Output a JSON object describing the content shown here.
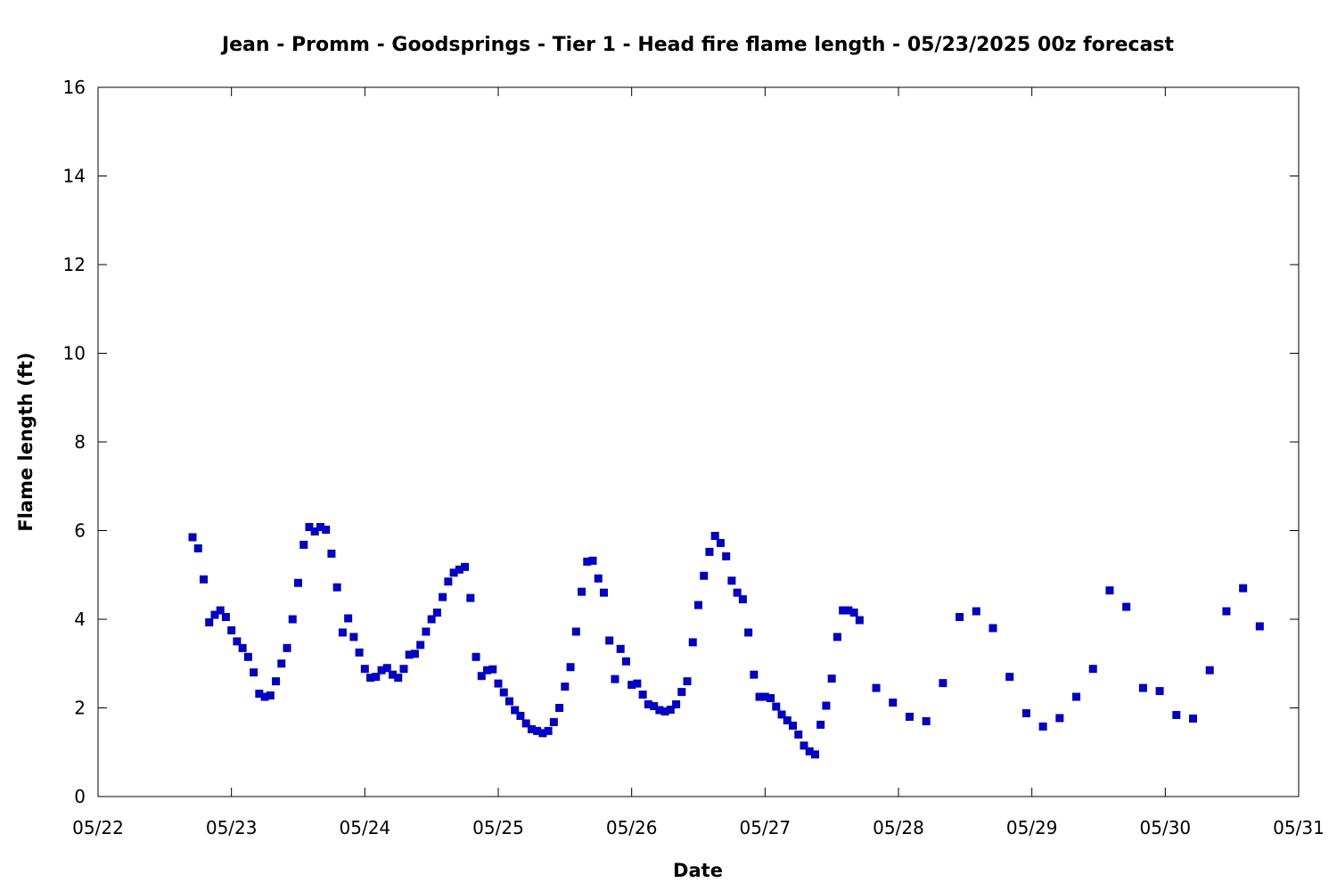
{
  "chart_data": {
    "type": "scatter",
    "title": "Jean - Promm - Goodsprings - Tier 1 - Head fire flame length - 05/23/2025 00z forecast",
    "xlabel": "Date",
    "ylabel": "Flame length (ft)",
    "ylim": [
      0,
      16
    ],
    "yticks": [
      0,
      2,
      4,
      6,
      8,
      10,
      12,
      14,
      16
    ],
    "xlim": [
      "2025-05-22 00:00",
      "2025-05-31 00:00"
    ],
    "xticks": [
      {
        "date": "2025-05-22",
        "label": "05/22"
      },
      {
        "date": "2025-05-23",
        "label": "05/23"
      },
      {
        "date": "2025-05-24",
        "label": "05/24"
      },
      {
        "date": "2025-05-25",
        "label": "05/25"
      },
      {
        "date": "2025-05-26",
        "label": "05/26"
      },
      {
        "date": "2025-05-27",
        "label": "05/27"
      },
      {
        "date": "2025-05-28",
        "label": "05/28"
      },
      {
        "date": "2025-05-29",
        "label": "05/29"
      },
      {
        "date": "2025-05-30",
        "label": "05/30"
      },
      {
        "date": "2025-05-31",
        "label": "05/31"
      }
    ],
    "grid": false,
    "marker_color": "#0000cc",
    "x": [
      "2025-05-22 17:00",
      "2025-05-22 18:00",
      "2025-05-22 19:00",
      "2025-05-22 20:00",
      "2025-05-22 21:00",
      "2025-05-22 22:00",
      "2025-05-22 23:00",
      "2025-05-23 00:00",
      "2025-05-23 01:00",
      "2025-05-23 02:00",
      "2025-05-23 03:00",
      "2025-05-23 04:00",
      "2025-05-23 05:00",
      "2025-05-23 06:00",
      "2025-05-23 07:00",
      "2025-05-23 08:00",
      "2025-05-23 09:00",
      "2025-05-23 10:00",
      "2025-05-23 11:00",
      "2025-05-23 12:00",
      "2025-05-23 13:00",
      "2025-05-23 14:00",
      "2025-05-23 15:00",
      "2025-05-23 16:00",
      "2025-05-23 17:00",
      "2025-05-23 18:00",
      "2025-05-23 19:00",
      "2025-05-23 20:00",
      "2025-05-23 21:00",
      "2025-05-23 22:00",
      "2025-05-23 23:00",
      "2025-05-24 00:00",
      "2025-05-24 01:00",
      "2025-05-24 02:00",
      "2025-05-24 03:00",
      "2025-05-24 04:00",
      "2025-05-24 05:00",
      "2025-05-24 06:00",
      "2025-05-24 07:00",
      "2025-05-24 08:00",
      "2025-05-24 09:00",
      "2025-05-24 10:00",
      "2025-05-24 11:00",
      "2025-05-24 12:00",
      "2025-05-24 13:00",
      "2025-05-24 14:00",
      "2025-05-24 15:00",
      "2025-05-24 16:00",
      "2025-05-24 17:00",
      "2025-05-24 18:00",
      "2025-05-24 19:00",
      "2025-05-24 20:00",
      "2025-05-24 21:00",
      "2025-05-24 22:00",
      "2025-05-24 23:00",
      "2025-05-25 00:00",
      "2025-05-25 01:00",
      "2025-05-25 02:00",
      "2025-05-25 03:00",
      "2025-05-25 04:00",
      "2025-05-25 05:00",
      "2025-05-25 06:00",
      "2025-05-25 07:00",
      "2025-05-25 08:00",
      "2025-05-25 09:00",
      "2025-05-25 10:00",
      "2025-05-25 11:00",
      "2025-05-25 12:00",
      "2025-05-25 13:00",
      "2025-05-25 14:00",
      "2025-05-25 15:00",
      "2025-05-25 16:00",
      "2025-05-25 17:00",
      "2025-05-25 18:00",
      "2025-05-25 19:00",
      "2025-05-25 20:00",
      "2025-05-25 21:00",
      "2025-05-25 22:00",
      "2025-05-25 23:00",
      "2025-05-26 00:00",
      "2025-05-26 01:00",
      "2025-05-26 02:00",
      "2025-05-26 03:00",
      "2025-05-26 04:00",
      "2025-05-26 05:00",
      "2025-05-26 06:00",
      "2025-05-26 07:00",
      "2025-05-26 08:00",
      "2025-05-26 09:00",
      "2025-05-26 10:00",
      "2025-05-26 11:00",
      "2025-05-26 12:00",
      "2025-05-26 13:00",
      "2025-05-26 14:00",
      "2025-05-26 15:00",
      "2025-05-26 16:00",
      "2025-05-26 17:00",
      "2025-05-26 18:00",
      "2025-05-26 19:00",
      "2025-05-26 20:00",
      "2025-05-26 21:00",
      "2025-05-26 22:00",
      "2025-05-26 23:00",
      "2025-05-27 00:00",
      "2025-05-27 01:00",
      "2025-05-27 02:00",
      "2025-05-27 03:00",
      "2025-05-27 04:00",
      "2025-05-27 05:00",
      "2025-05-27 06:00",
      "2025-05-27 07:00",
      "2025-05-27 08:00",
      "2025-05-27 09:00",
      "2025-05-27 10:00",
      "2025-05-27 11:00",
      "2025-05-27 12:00",
      "2025-05-27 13:00",
      "2025-05-27 14:00",
      "2025-05-27 15:00",
      "2025-05-27 16:00",
      "2025-05-27 17:00",
      "2025-05-27 20:00",
      "2025-05-27 23:00",
      "2025-05-28 02:00",
      "2025-05-28 05:00",
      "2025-05-28 08:00",
      "2025-05-28 11:00",
      "2025-05-28 14:00",
      "2025-05-28 17:00",
      "2025-05-28 20:00",
      "2025-05-28 23:00",
      "2025-05-29 02:00",
      "2025-05-29 05:00",
      "2025-05-29 08:00",
      "2025-05-29 11:00",
      "2025-05-29 14:00",
      "2025-05-29 17:00",
      "2025-05-29 20:00",
      "2025-05-29 23:00",
      "2025-05-30 02:00",
      "2025-05-30 05:00",
      "2025-05-30 08:00",
      "2025-05-30 11:00",
      "2025-05-30 14:00",
      "2025-05-30 17:00"
    ],
    "values": [
      5.85,
      5.6,
      4.9,
      3.93,
      4.1,
      4.2,
      4.05,
      3.75,
      3.5,
      3.35,
      3.15,
      2.8,
      2.32,
      2.25,
      2.28,
      2.6,
      3.0,
      3.35,
      4.0,
      4.82,
      5.68,
      6.08,
      5.98,
      6.08,
      6.02,
      5.48,
      4.72,
      3.7,
      4.02,
      3.6,
      3.25,
      2.88,
      2.68,
      2.7,
      2.85,
      2.9,
      2.75,
      2.68,
      2.88,
      3.2,
      3.22,
      3.42,
      3.72,
      4.0,
      4.15,
      4.5,
      4.85,
      5.05,
      5.12,
      5.18,
      4.48,
      3.15,
      2.72,
      2.85,
      2.87,
      2.55,
      2.35,
      2.15,
      1.95,
      1.82,
      1.65,
      1.52,
      1.48,
      1.43,
      1.48,
      1.68,
      2.0,
      2.48,
      2.92,
      3.72,
      4.62,
      5.3,
      5.32,
      4.92,
      4.6,
      3.52,
      2.65,
      3.33,
      3.05,
      2.52,
      2.55,
      2.3,
      2.08,
      2.04,
      1.95,
      1.92,
      1.96,
      2.08,
      2.36,
      2.6,
      3.48,
      4.32,
      4.98,
      5.52,
      5.88,
      5.72,
      5.42,
      4.87,
      4.6,
      4.45,
      3.7,
      2.75,
      2.25,
      2.25,
      2.22,
      2.03,
      1.85,
      1.72,
      1.6,
      1.4,
      1.15,
      1.02,
      0.95,
      1.62,
      2.05,
      2.66,
      3.6,
      4.2,
      4.2,
      4.15,
      3.98,
      2.45,
      2.12,
      1.8,
      1.7,
      2.56,
      4.05,
      4.18,
      3.8,
      2.7,
      1.88,
      1.58,
      1.77,
      2.25,
      2.88,
      4.65,
      4.28,
      2.45,
      2.38,
      1.84,
      1.76,
      2.85,
      4.18,
      4.7,
      3.84
    ]
  }
}
